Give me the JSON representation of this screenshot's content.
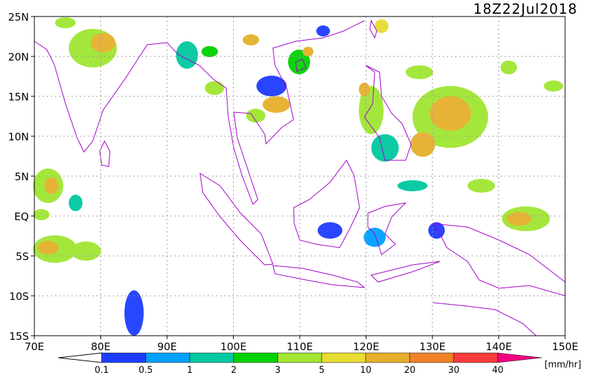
{
  "title": "18Z22Jul2018",
  "x_labels": [
    "70E",
    "80E",
    "90E",
    "100E",
    "110E",
    "120E",
    "130E",
    "140E",
    "150E"
  ],
  "y_labels": [
    "25N",
    "20N",
    "15N",
    "10N",
    "5N",
    "EQ",
    "5S",
    "10S",
    "15S"
  ],
  "colorbar": {
    "labels": [
      "0.1",
      "0.5",
      "1",
      "2",
      "3",
      "5",
      "10",
      "20",
      "30",
      "40"
    ],
    "colors": [
      "#1e3cff",
      "#00a0ff",
      "#00c8a0",
      "#00d200",
      "#a0e632",
      "#e6dc32",
      "#e6af2d",
      "#f08228",
      "#fa3c3c",
      "#f00082"
    ],
    "unit": "[mm/hr]"
  }
}
